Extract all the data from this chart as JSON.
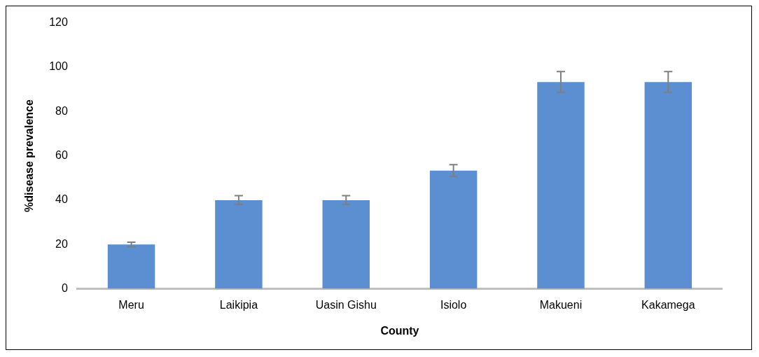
{
  "chart_data": {
    "type": "bar",
    "xlabel": "County",
    "ylabel": "%disease prevalence",
    "categories": [
      "Meru",
      "Laikipia",
      "Uasin Gishu",
      "Isiolo",
      "Makueni",
      "Kakamega"
    ],
    "values": [
      20,
      40,
      40,
      53.3,
      93.3,
      93.3
    ],
    "errors": [
      1,
      2,
      2,
      2.7,
      4.7,
      4.7
    ],
    "color": "#5b8fd2",
    "ylim": [
      0,
      120
    ],
    "yticks": [
      0,
      20,
      40,
      60,
      80,
      100,
      120
    ],
    "grid": false,
    "legend": false
  }
}
